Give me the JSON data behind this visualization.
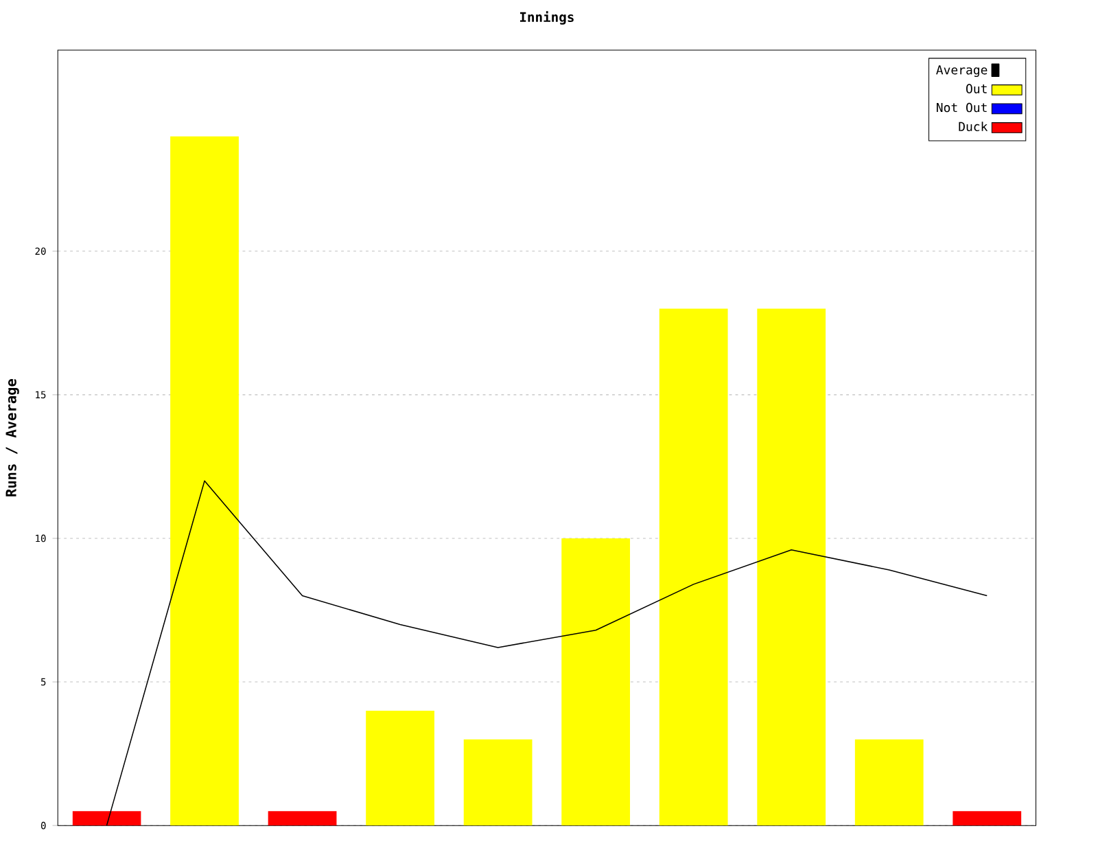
{
  "chart_data": {
    "type": "bar",
    "title": "Innings",
    "ylabel": "Runs / Average",
    "categories": [
      null,
      null,
      null,
      null,
      null,
      null,
      null,
      null,
      null,
      null
    ],
    "series": [
      {
        "name": "Average",
        "type": "line",
        "color": "#000000",
        "values": [
          0,
          12,
          8,
          7,
          6.2,
          6.8,
          8.4,
          9.6,
          8.9,
          8
        ]
      },
      {
        "name": "Out",
        "color": "#ffff00",
        "values": [
          null,
          24,
          null,
          4,
          3,
          10,
          18,
          18,
          3,
          null
        ]
      },
      {
        "name": "Not Out",
        "color": "#0000ff",
        "values": [
          null,
          null,
          null,
          null,
          null,
          null,
          null,
          null,
          null,
          null
        ]
      },
      {
        "name": "Duck",
        "color": "#ff0000",
        "values": [
          0.5,
          null,
          0.5,
          null,
          null,
          null,
          null,
          null,
          null,
          0.5
        ]
      }
    ],
    "ylim": [
      0,
      27
    ],
    "yticks": [
      0,
      5,
      10,
      15,
      20
    ],
    "grid": "y",
    "legend": "top right",
    "marker": "none",
    "tick_labels": "y"
  }
}
